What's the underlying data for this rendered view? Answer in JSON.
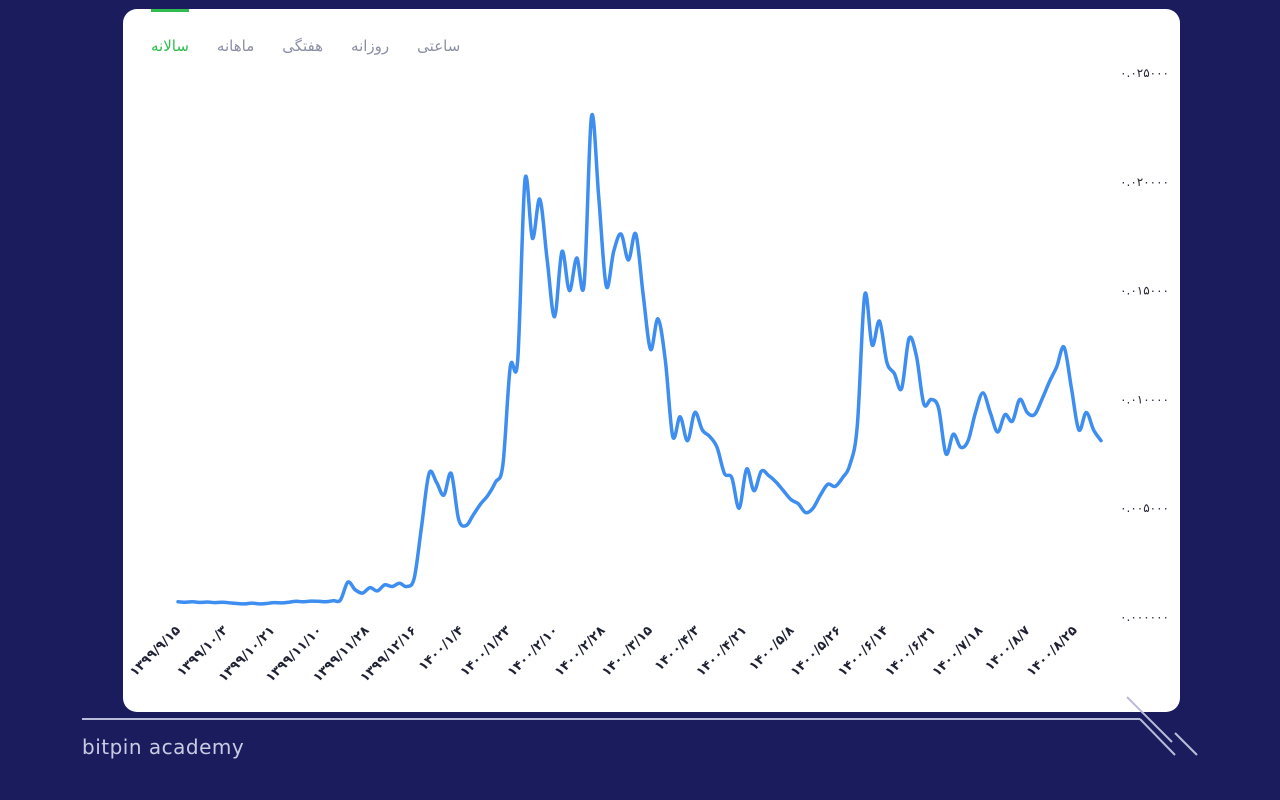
{
  "tabs": [
    {
      "label": "سالانه",
      "active": true
    },
    {
      "label": "ماهانه",
      "active": false
    },
    {
      "label": "هفتگی",
      "active": false
    },
    {
      "label": "روزانه",
      "active": false
    },
    {
      "label": "ساعتی",
      "active": false
    }
  ],
  "footer": {
    "brand": "bitpin academy"
  },
  "colors": {
    "line": "#3d8ef0",
    "accent": "#2ebd4e",
    "background": "#1b1c5e"
  },
  "chart_data": {
    "type": "line",
    "title": "",
    "xlabel": "",
    "ylabel": "",
    "ylim": [
      0,
      0.025
    ],
    "yticks": [
      {
        "value": 0.025,
        "label": "۰.۰۲۵۰۰۰"
      },
      {
        "value": 0.02,
        "label": "۰.۰۲۰۰۰۰"
      },
      {
        "value": 0.015,
        "label": "۰.۰۱۵۰۰۰"
      },
      {
        "value": 0.01,
        "label": "۰.۰۱۰۰۰۰"
      },
      {
        "value": 0.005,
        "label": "۰.۰۰۵۰۰۰"
      },
      {
        "value": 0,
        "label": "۰.۰۰۰۰۰۰"
      }
    ],
    "xticks": [
      "۱۳۹۹/۹/۱۵",
      "۱۳۹۹/۱۰/۳",
      "۱۳۹۹/۱۰/۲۱",
      "۱۳۹۹/۱۱/۱۰",
      "۱۳۹۹/۱۱/۲۸",
      "۱۳۹۹/۱۲/۱۶",
      "۱۴۰۰/۱/۴",
      "۱۴۰۰/۱/۲۳",
      "۱۴۰۰/۲/۱۰",
      "۱۴۰۰/۲/۲۸",
      "۱۴۰۰/۳/۱۵",
      "۱۴۰۰/۴/۳",
      "۱۴۰۰/۴/۲۱",
      "۱۴۰۰/۵/۸",
      "۱۴۰۰/۵/۲۶",
      "۱۴۰۰/۶/۱۴",
      "۱۴۰۰/۶/۳۱",
      "۱۴۰۰/۷/۱۸",
      "۱۴۰۰/۸/۷",
      "۱۴۰۰/۸/۲۵"
    ],
    "grid": false,
    "series": [
      {
        "values": [
          0.0007,
          0.00068,
          0.0007,
          0.00067,
          0.00069,
          0.00066,
          0.00068,
          0.00065,
          0.00062,
          0.0006,
          0.00064,
          0.0006,
          0.00062,
          0.00066,
          0.00065,
          0.00068,
          0.00072,
          0.0007,
          0.00073,
          0.00072,
          0.0007,
          0.00075,
          0.00078,
          0.0016,
          0.00125,
          0.0011,
          0.00135,
          0.0012,
          0.00148,
          0.0014,
          0.00155,
          0.0014,
          0.0018,
          0.0042,
          0.0066,
          0.0062,
          0.0056,
          0.0066,
          0.0045,
          0.0042,
          0.0047,
          0.0052,
          0.0056,
          0.0062,
          0.007,
          0.0115,
          0.0118,
          0.0201,
          0.0174,
          0.0192,
          0.0164,
          0.0138,
          0.0168,
          0.015,
          0.0165,
          0.0153,
          0.023,
          0.0192,
          0.0152,
          0.0168,
          0.0176,
          0.0164,
          0.0176,
          0.0148,
          0.0123,
          0.0137,
          0.0118,
          0.0083,
          0.0092,
          0.0081,
          0.0094,
          0.0086,
          0.0083,
          0.0078,
          0.0066,
          0.0064,
          0.005,
          0.0068,
          0.0058,
          0.0067,
          0.0065,
          0.0062,
          0.0058,
          0.0054,
          0.0052,
          0.0048,
          0.005,
          0.0056,
          0.0061,
          0.006,
          0.0064,
          0.007,
          0.0088,
          0.0148,
          0.0125,
          0.0136,
          0.0117,
          0.0112,
          0.0105,
          0.0128,
          0.012,
          0.0098,
          0.01,
          0.0096,
          0.0075,
          0.0084,
          0.0078,
          0.0081,
          0.0094,
          0.0103,
          0.0094,
          0.0085,
          0.0093,
          0.009,
          0.01,
          0.0094,
          0.0093,
          0.01,
          0.0108,
          0.0115,
          0.0124,
          0.0105,
          0.0086,
          0.0094,
          0.0086,
          0.0081
        ]
      }
    ]
  }
}
